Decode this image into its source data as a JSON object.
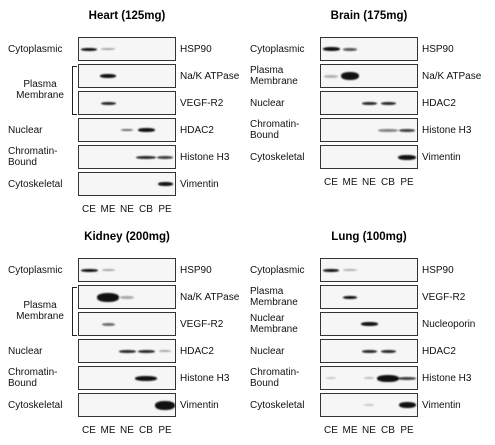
{
  "panels": [
    {
      "title": "Heart (125mg)",
      "groups": [
        {
          "label": "Cytoplasmic",
          "markers": [
            "HSP90"
          ]
        },
        {
          "label": "Plasma Membrane",
          "markers": [
            "Na/K ATPase",
            "VEGF-R2"
          ]
        },
        {
          "label": "Nuclear",
          "markers": [
            "HDAC2"
          ]
        },
        {
          "label": "Chromatin-Bound",
          "markers": [
            "Histone H3"
          ]
        },
        {
          "label": "Cytoskeletal",
          "markers": [
            "Vimentin"
          ]
        }
      ],
      "lanes": [
        "CE",
        "ME",
        "NE",
        "CB",
        "PE"
      ]
    },
    {
      "title": "Brain (175mg)",
      "groups": [
        {
          "label": "Cytoplasmic",
          "markers": [
            "HSP90"
          ]
        },
        {
          "label": "Plasma Membrane",
          "markers": [
            "Na/K ATPase"
          ]
        },
        {
          "label": "Nuclear",
          "markers": [
            "HDAC2"
          ]
        },
        {
          "label": "Chromatin-Bound",
          "markers": [
            "Histone H3"
          ]
        },
        {
          "label": "Cytoskeletal",
          "markers": [
            "Vimentin"
          ]
        }
      ],
      "lanes": [
        "CE",
        "ME",
        "NE",
        "CB",
        "PE"
      ]
    },
    {
      "title": "Kidney (200mg)",
      "groups": [
        {
          "label": "Cytoplasmic",
          "markers": [
            "HSP90"
          ]
        },
        {
          "label": "Plasma Membrane",
          "markers": [
            "Na/K ATPase",
            "VEGF-R2"
          ]
        },
        {
          "label": "Nuclear",
          "markers": [
            "HDAC2"
          ]
        },
        {
          "label": "Chromatin-Bound",
          "markers": [
            "Histone H3"
          ]
        },
        {
          "label": "Cytoskeletal",
          "markers": [
            "Vimentin"
          ]
        }
      ],
      "lanes": [
        "CE",
        "ME",
        "NE",
        "CB",
        "PE"
      ]
    },
    {
      "title": "Lung (100mg)",
      "groups": [
        {
          "label": "Cytoplasmic",
          "markers": [
            "HSP90"
          ]
        },
        {
          "label": "Plasma Membrane",
          "markers": [
            "VEGF-R2"
          ]
        },
        {
          "label": "Nuclear Membrane",
          "markers": [
            "Nucleoporin"
          ]
        },
        {
          "label": "Nuclear",
          "markers": [
            "HDAC2"
          ]
        },
        {
          "label": "Chromatin-Bound",
          "markers": [
            "Histone H3"
          ]
        },
        {
          "label": "Cytoskeletal",
          "markers": [
            "Vimentin"
          ]
        }
      ],
      "lanes": [
        "CE",
        "ME",
        "NE",
        "CB",
        "PE"
      ]
    }
  ]
}
